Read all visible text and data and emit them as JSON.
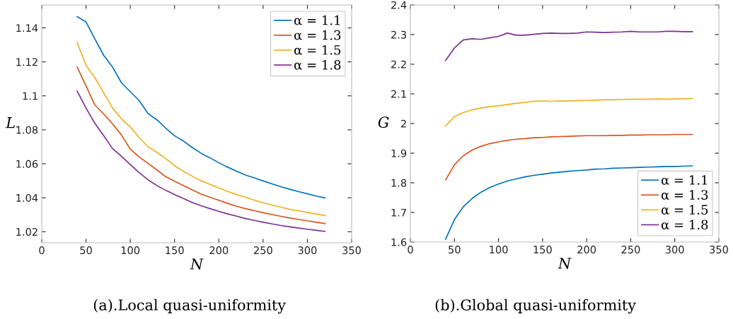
{
  "chart_data": [
    {
      "type": "line",
      "xlabel": "N",
      "ylabel": "L",
      "annotations": [
        "(a).Local quasi-uniformity"
      ],
      "x": [
        40,
        50,
        60,
        70,
        80,
        90,
        100,
        110,
        120,
        130,
        140,
        150,
        160,
        170,
        180,
        190,
        200,
        210,
        220,
        230,
        240,
        250,
        260,
        270,
        280,
        290,
        300,
        310,
        320
      ],
      "xlim": [
        0,
        350
      ],
      "xticks": [
        0,
        50,
        100,
        150,
        200,
        250,
        300,
        350
      ],
      "ylim": [
        1.0135,
        1.1535
      ],
      "yticks": [
        1.02,
        1.04,
        1.06,
        1.08,
        {
          "value": 1.1,
          "label": "1.1"
        },
        1.12,
        1.14
      ],
      "grid": false,
      "legend": "top right",
      "marker": "none",
      "line_style": "solid",
      "series": [
        {
          "name": "α = 1.1",
          "color": "#0072bd",
          "values": [
            1.1466,
            1.1435,
            1.1335,
            1.1238,
            1.1169,
            1.1077,
            1.1024,
            1.0972,
            1.0896,
            1.0859,
            1.081,
            1.0765,
            1.0734,
            1.0696,
            1.0662,
            1.0635,
            1.0606,
            1.058,
            1.0557,
            1.0534,
            1.0517,
            1.0499,
            1.0482,
            1.0465,
            1.045,
            1.0436,
            1.0423,
            1.041,
            1.0399
          ]
        },
        {
          "name": "α = 1.3",
          "color": "#d95319",
          "values": [
            1.1169,
            1.1059,
            1.0946,
            1.0893,
            1.0835,
            1.0769,
            1.0686,
            1.064,
            1.0603,
            1.0564,
            1.0524,
            1.0497,
            1.0472,
            1.0447,
            1.0422,
            1.0403,
            1.0385,
            1.0367,
            1.035,
            1.0336,
            1.0324,
            1.0312,
            1.0301,
            1.0291,
            1.0281,
            1.0272,
            1.0265,
            1.0256,
            1.0248
          ]
        },
        {
          "name": "α = 1.5",
          "color": "#edb120",
          "values": [
            1.1314,
            1.118,
            1.1107,
            1.1017,
            1.0928,
            1.0865,
            1.0817,
            1.0755,
            1.07,
            1.0668,
            1.0631,
            1.0589,
            1.0555,
            1.0527,
            1.05,
            1.0479,
            1.0458,
            1.0437,
            1.0419,
            1.0403,
            1.0386,
            1.0371,
            1.0357,
            1.0345,
            1.0332,
            1.0323,
            1.0313,
            1.0305,
            1.0295
          ]
        },
        {
          "name": "α = 1.8",
          "color": "#7e2f8e",
          "values": [
            1.1028,
            1.0928,
            1.0838,
            1.0765,
            1.0689,
            1.0644,
            1.0596,
            1.0548,
            1.0506,
            1.0472,
            1.0444,
            1.0419,
            1.0396,
            1.0372,
            1.0353,
            1.0336,
            1.032,
            1.0305,
            1.0292,
            1.0278,
            1.0267,
            1.0256,
            1.0246,
            1.0237,
            1.0229,
            1.0222,
            1.0215,
            1.0208,
            1.0202
          ]
        }
      ]
    },
    {
      "type": "line",
      "xlabel": "N",
      "ylabel": "G",
      "annotations": [
        "(b).Global quasi-uniformity"
      ],
      "x": [
        40,
        50,
        60,
        70,
        80,
        90,
        100,
        110,
        120,
        130,
        140,
        150,
        160,
        170,
        180,
        190,
        200,
        210,
        220,
        230,
        240,
        250,
        260,
        270,
        280,
        290,
        300,
        310,
        320
      ],
      "xlim": [
        0,
        350
      ],
      "xticks": [
        0,
        50,
        100,
        150,
        200,
        250,
        300,
        350
      ],
      "ylim": [
        1.6,
        2.4
      ],
      "yticks": [
        1.6,
        1.7,
        1.8,
        1.9,
        {
          "value": 2,
          "label": "2"
        },
        2.1,
        2.2,
        2.3,
        2.4
      ],
      "grid": false,
      "legend": "bottom right",
      "marker": "none",
      "line_style": "solid",
      "series": [
        {
          "name": "α = 1.1",
          "color": "#0072bd",
          "values": [
            1.61,
            1.676,
            1.719,
            1.747,
            1.768,
            1.784,
            1.796,
            1.806,
            1.813,
            1.82,
            1.825,
            1.829,
            1.833,
            1.836,
            1.839,
            1.841,
            1.843,
            1.846,
            1.847,
            1.849,
            1.85,
            1.851,
            1.852,
            1.853,
            1.854,
            1.855,
            1.855,
            1.856,
            1.857
          ]
        },
        {
          "name": "α = 1.3",
          "color": "#d95319",
          "values": [
            1.81,
            1.861,
            1.891,
            1.91,
            1.923,
            1.932,
            1.938,
            1.943,
            1.947,
            1.949,
            1.952,
            1.953,
            1.955,
            1.956,
            1.957,
            1.958,
            1.959,
            1.959,
            1.959,
            1.96,
            1.96,
            1.961,
            1.961,
            1.962,
            1.962,
            1.962,
            1.963,
            1.963,
            1.963
          ]
        },
        {
          "name": "α = 1.5",
          "color": "#edb120",
          "values": [
            1.992,
            2.023,
            2.037,
            2.046,
            2.052,
            2.057,
            2.06,
            2.064,
            2.068,
            2.071,
            2.075,
            2.076,
            2.075,
            2.076,
            2.076,
            2.077,
            2.078,
            2.079,
            2.08,
            2.08,
            2.081,
            2.082,
            2.082,
            2.082,
            2.083,
            2.082,
            2.083,
            2.083,
            2.084
          ]
        },
        {
          "name": "α = 1.8",
          "color": "#7e2f8e",
          "values": [
            2.213,
            2.255,
            2.282,
            2.286,
            2.284,
            2.289,
            2.294,
            2.305,
            2.298,
            2.298,
            2.301,
            2.304,
            2.305,
            2.304,
            2.304,
            2.305,
            2.309,
            2.308,
            2.307,
            2.308,
            2.309,
            2.311,
            2.309,
            2.309,
            2.309,
            2.311,
            2.311,
            2.31,
            2.31
          ]
        }
      ]
    }
  ]
}
